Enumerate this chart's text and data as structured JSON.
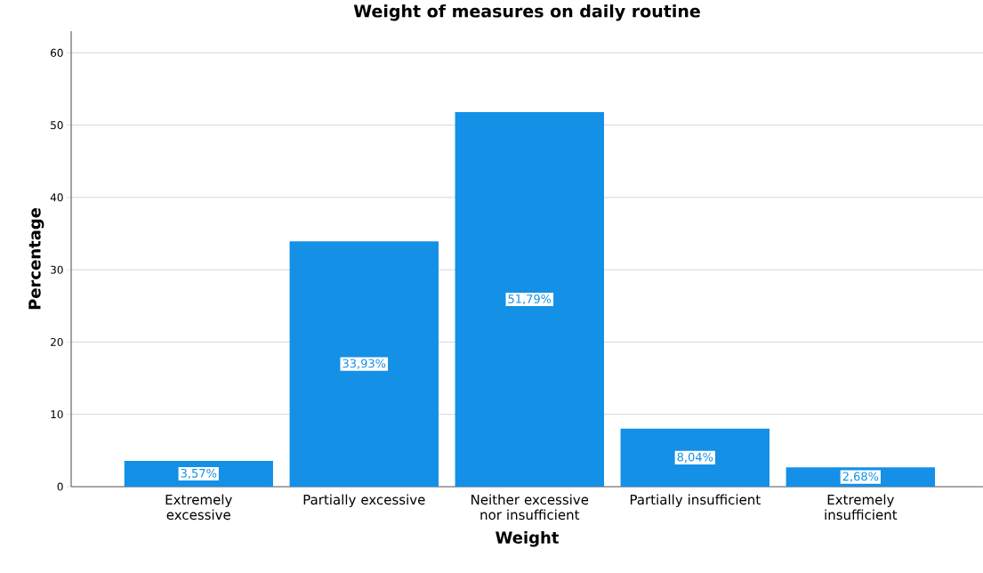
{
  "chart_data": {
    "type": "bar",
    "title": "Weight of measures on daily routine",
    "xlabel": "Weight",
    "ylabel": "Percentage",
    "categories": [
      "Extremely excessive",
      "Partially excessive",
      "Neither excessive nor insufficient",
      "Partially insufficient",
      "Extremely insufficient"
    ],
    "values": [
      3.57,
      33.93,
      51.79,
      8.04,
      2.68
    ],
    "value_labels": [
      "3,57%",
      "33,93%",
      "51,79%",
      "8,04%",
      "2,68%"
    ],
    "color": "#1490e6",
    "ylim": [
      0,
      63
    ],
    "yticks": [
      0,
      10,
      20,
      30,
      40,
      50,
      60
    ],
    "grid": "y"
  }
}
